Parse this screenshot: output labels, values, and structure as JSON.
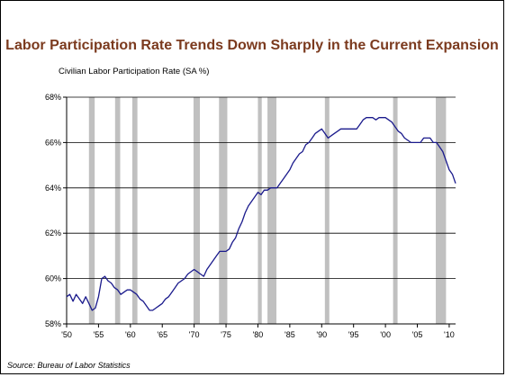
{
  "chart_data": {
    "type": "line",
    "title": "Labor Participation Rate Trends Down Sharply in the Current Expansion",
    "ylabel": "Civilian Labor Participation Rate (SA %)",
    "source": "Source: Bureau of Labor Statistics",
    "xlim": [
      1950,
      2011
    ],
    "ylim": [
      58,
      68
    ],
    "grid": true,
    "y_ticks": [
      {
        "value": 58,
        "label": "58%"
      },
      {
        "value": 60,
        "label": "60%"
      },
      {
        "value": 62,
        "label": "62%"
      },
      {
        "value": 64,
        "label": "64%"
      },
      {
        "value": 66,
        "label": "66%"
      },
      {
        "value": 68,
        "label": "68%"
      }
    ],
    "x_ticks": [
      {
        "value": 1950,
        "label": "'50"
      },
      {
        "value": 1955,
        "label": "'55"
      },
      {
        "value": 1960,
        "label": "'60"
      },
      {
        "value": 1965,
        "label": "'65"
      },
      {
        "value": 1970,
        "label": "'70"
      },
      {
        "value": 1975,
        "label": "'75"
      },
      {
        "value": 1980,
        "label": "'80"
      },
      {
        "value": 1985,
        "label": "'85"
      },
      {
        "value": 1990,
        "label": "'90"
      },
      {
        "value": 1995,
        "label": "'95"
      },
      {
        "value": 2000,
        "label": "'00"
      },
      {
        "value": 2005,
        "label": "'05"
      },
      {
        "value": 2010,
        "label": "'10"
      }
    ],
    "recessions": [
      [
        1953.5,
        1954.4
      ],
      [
        1957.6,
        1958.4
      ],
      [
        1960.3,
        1961.1
      ],
      [
        1969.9,
        1970.9
      ],
      [
        1973.9,
        1975.2
      ],
      [
        1980.0,
        1980.6
      ],
      [
        1981.5,
        1982.9
      ],
      [
        1990.5,
        1991.2
      ],
      [
        2001.2,
        2001.9
      ],
      [
        2007.9,
        2009.5
      ]
    ],
    "series": [
      {
        "color": "#1a1a8c",
        "x": [
          1950.0,
          1950.5,
          1951.0,
          1951.5,
          1952.0,
          1952.5,
          1953.0,
          1953.5,
          1954.0,
          1954.5,
          1955.0,
          1955.5,
          1956.0,
          1956.5,
          1957.0,
          1957.5,
          1958.0,
          1958.5,
          1959.0,
          1959.5,
          1960.0,
          1960.5,
          1961.0,
          1961.5,
          1962.0,
          1962.5,
          1963.0,
          1963.5,
          1964.0,
          1964.5,
          1965.0,
          1965.5,
          1966.0,
          1966.5,
          1967.0,
          1967.5,
          1968.0,
          1968.5,
          1969.0,
          1969.5,
          1970.0,
          1970.5,
          1971.0,
          1971.5,
          1972.0,
          1972.5,
          1973.0,
          1973.5,
          1974.0,
          1974.5,
          1975.0,
          1975.5,
          1976.0,
          1976.5,
          1977.0,
          1977.5,
          1978.0,
          1978.5,
          1979.0,
          1979.5,
          1980.0,
          1980.5,
          1981.0,
          1981.5,
          1982.0,
          1982.5,
          1983.0,
          1983.5,
          1984.0,
          1984.5,
          1985.0,
          1985.5,
          1986.0,
          1986.5,
          1987.0,
          1987.5,
          1988.0,
          1988.5,
          1989.0,
          1989.5,
          1990.0,
          1990.5,
          1991.0,
          1991.5,
          1992.0,
          1992.5,
          1993.0,
          1993.5,
          1994.0,
          1994.5,
          1995.0,
          1995.5,
          1996.0,
          1996.5,
          1997.0,
          1997.5,
          1998.0,
          1998.5,
          1999.0,
          1999.5,
          2000.0,
          2000.5,
          2001.0,
          2001.5,
          2002.0,
          2002.5,
          2003.0,
          2003.5,
          2004.0,
          2004.5,
          2005.0,
          2005.5,
          2006.0,
          2006.5,
          2007.0,
          2007.5,
          2008.0,
          2008.5,
          2009.0,
          2009.5,
          2010.0,
          2010.5,
          2011.0
        ],
        "y": [
          59.2,
          59.3,
          59.0,
          59.3,
          59.1,
          58.9,
          59.2,
          58.9,
          58.6,
          58.7,
          59.2,
          60.0,
          60.1,
          59.9,
          59.8,
          59.6,
          59.5,
          59.3,
          59.4,
          59.5,
          59.5,
          59.4,
          59.3,
          59.1,
          59.0,
          58.8,
          58.6,
          58.6,
          58.7,
          58.8,
          58.9,
          59.1,
          59.2,
          59.4,
          59.6,
          59.8,
          59.9,
          60.0,
          60.2,
          60.3,
          60.4,
          60.3,
          60.2,
          60.1,
          60.4,
          60.6,
          60.8,
          61.0,
          61.2,
          61.2,
          61.2,
          61.3,
          61.6,
          61.8,
          62.2,
          62.5,
          62.9,
          63.2,
          63.4,
          63.6,
          63.8,
          63.7,
          63.9,
          63.9,
          64.0,
          64.0,
          64.0,
          64.2,
          64.4,
          64.6,
          64.8,
          65.1,
          65.3,
          65.5,
          65.6,
          65.9,
          66.0,
          66.2,
          66.4,
          66.5,
          66.6,
          66.4,
          66.2,
          66.3,
          66.4,
          66.5,
          66.6,
          66.6,
          66.6,
          66.6,
          66.6,
          66.6,
          66.8,
          67.0,
          67.1,
          67.1,
          67.1,
          67.0,
          67.1,
          67.1,
          67.1,
          67.0,
          66.9,
          66.7,
          66.5,
          66.4,
          66.2,
          66.1,
          66.0,
          66.0,
          66.0,
          66.0,
          66.2,
          66.2,
          66.2,
          66.0,
          66.0,
          65.8,
          65.6,
          65.2,
          64.8,
          64.6,
          64.2
        ]
      }
    ]
  }
}
